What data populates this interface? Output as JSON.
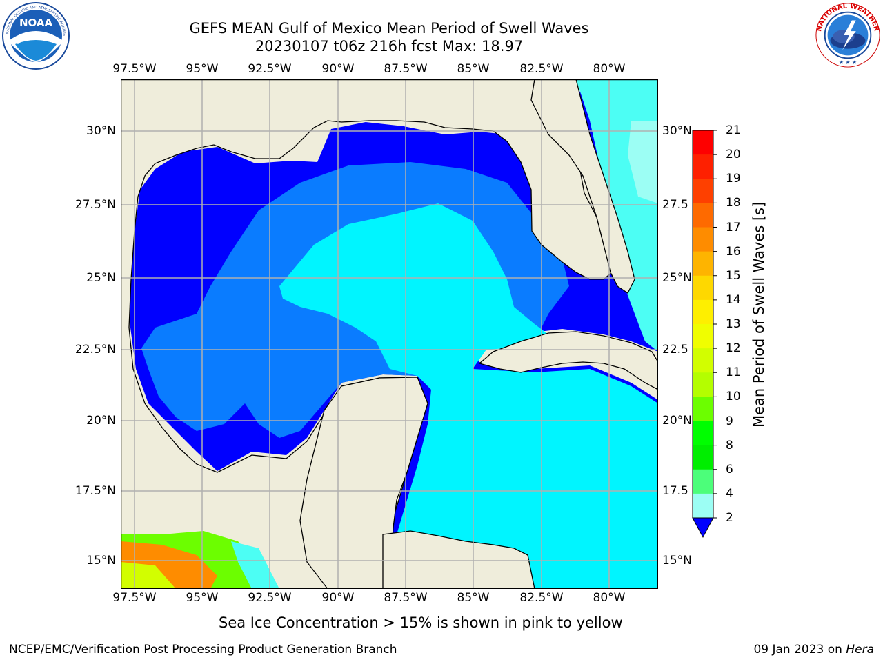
{
  "header": {
    "title_line1": "GEFS MEAN Gulf of Mexico Mean Period of Swell Waves",
    "title_line2": "20230107 t06z 216h fcst   Max: 18.97"
  },
  "logos": {
    "noaa_text": "NOAA",
    "noaa_ring": "NATIONAL OCEANIC AND ATMOSPHERIC ADMINISTRATION · U.S. DEPARTMENT OF COMMERCE",
    "nws_ring": "NATIONAL WEATHER SERVICE"
  },
  "axes": {
    "lon_labels": [
      "97.5°W",
      "95°W",
      "92.5°W",
      "90°W",
      "87.5°W",
      "85°W",
      "82.5°W",
      "80°W"
    ],
    "lat_labels_left": [
      "30°N",
      "27.5°N",
      "25°N",
      "22.5°N",
      "20°N",
      "17.5°N",
      "15°N"
    ],
    "lat_labels_right": [
      "30°N",
      "27.5",
      "25°N",
      "22.5",
      "20°N",
      "17.5",
      "15°N"
    ]
  },
  "colorbar": {
    "label": "Mean Period of Swell Waves [s]",
    "ticks": [
      "21",
      "20",
      "19",
      "18",
      "17",
      "16",
      "15",
      "14",
      "13",
      "12",
      "11",
      "10",
      "9",
      "8",
      "6",
      "4",
      "2"
    ],
    "colors": [
      "#fe0000",
      "#fe2000",
      "#fe4000",
      "#fe6a00",
      "#fe8c00",
      "#feb400",
      "#fed800",
      "#feef00",
      "#f0fe00",
      "#d2fe00",
      "#b4fe00",
      "#6cfe00",
      "#00fe00",
      "#00ee00",
      "#4cfe7a",
      "#9cfef4",
      "#4cfef4",
      "#00fefe",
      "#00a0fe",
      "#0000fe"
    ]
  },
  "colors": {
    "land": "#efeddb",
    "short_swell": "#0000ff",
    "mid_swell": "#0a7cff",
    "long_swell": "#00f5ff",
    "grid": "#b0b0b0"
  },
  "notes": {
    "sea_ice": "Sea Ice Concentration > 15% is shown in pink to yellow"
  },
  "footer": {
    "left": "NCEP/EMC/Verification Post Processing Product Generation Branch",
    "date": "09 Jan 2023 on ",
    "machine": "Hera"
  }
}
